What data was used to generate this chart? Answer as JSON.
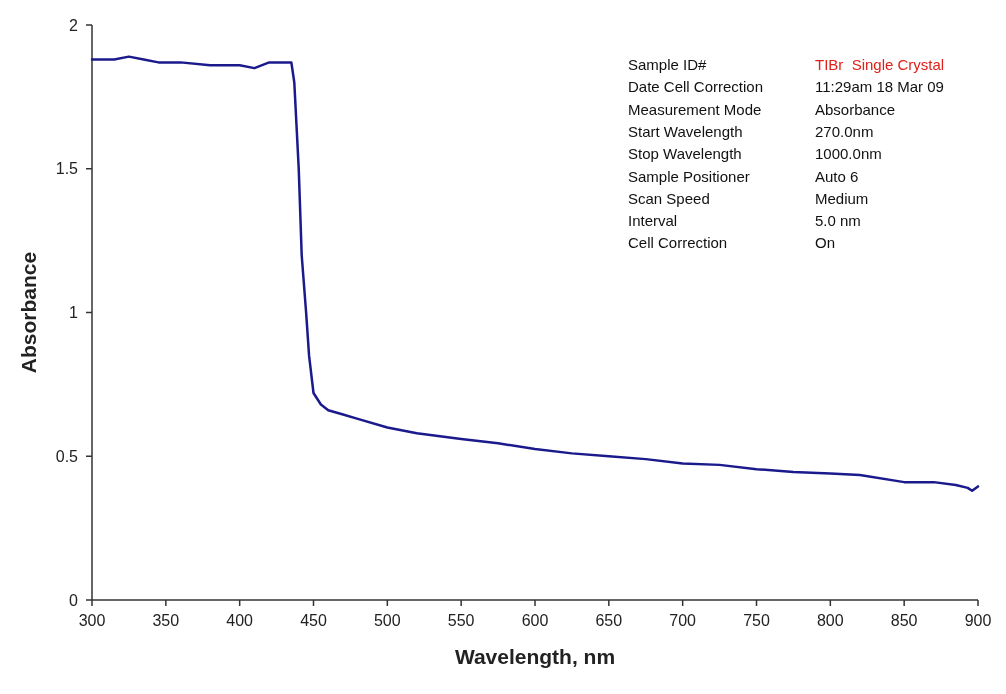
{
  "chart_data": {
    "type": "line",
    "xlabel": "Wavelength, nm",
    "ylabel": "Absorbance",
    "xlim": [
      300,
      900
    ],
    "xticks": [
      300,
      350,
      400,
      450,
      500,
      550,
      600,
      650,
      700,
      750,
      800,
      850,
      900
    ],
    "ylim": [
      0,
      2
    ],
    "yticks": [
      0,
      0.5,
      1,
      1.5,
      2
    ],
    "grid": false,
    "marker": "none",
    "line_style": "solid",
    "annotations": [
      "Sample ID#",
      "TIBr  Single Crystal",
      "Date Cell Correction",
      "11:29am 18 Mar 09",
      "Measurement Mode",
      "Absorbance",
      "Start Wavelength",
      "270.0nm",
      "Stop Wavelength",
      "1000.0nm",
      "Sample Positioner",
      "Auto 6",
      "Scan Speed",
      "Medium",
      "Interval",
      "5.0 nm",
      "Cell Correction",
      "On"
    ],
    "series": [
      {
        "color": "#1a1a8c",
        "x": [
          300,
          315,
          325,
          335,
          345,
          360,
          380,
          400,
          410,
          420,
          430,
          435,
          437,
          440,
          442,
          445,
          447,
          450,
          455,
          460,
          470,
          480,
          500,
          520,
          550,
          575,
          600,
          625,
          650,
          675,
          700,
          725,
          750,
          775,
          800,
          820,
          850,
          870,
          885,
          893,
          896,
          900
        ],
        "values": [
          1.88,
          1.88,
          1.89,
          1.88,
          1.87,
          1.87,
          1.86,
          1.86,
          1.85,
          1.87,
          1.87,
          1.87,
          1.8,
          1.5,
          1.2,
          1.0,
          0.85,
          0.72,
          0.68,
          0.66,
          0.645,
          0.63,
          0.6,
          0.58,
          0.56,
          0.545,
          0.525,
          0.51,
          0.5,
          0.49,
          0.475,
          0.47,
          0.455,
          0.445,
          0.44,
          0.435,
          0.41,
          0.41,
          0.4,
          0.39,
          0.38,
          0.395
        ]
      }
    ]
  }
}
